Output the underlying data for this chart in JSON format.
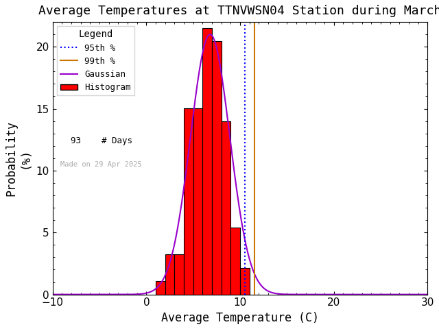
{
  "title": "Average Temperatures at TTNVWSN04 Station during March",
  "xlabel": "Average Temperature (C)",
  "ylabel_top": "Probability",
  "ylabel_bot": "(%)",
  "xlim": [
    -10,
    30
  ],
  "ylim": [
    0,
    22
  ],
  "yticks": [
    0,
    5,
    10,
    15,
    20
  ],
  "xticks": [
    -10,
    0,
    10,
    20,
    30
  ],
  "n_days": 93,
  "made_on": "Made on 29 Apr 2025",
  "bar_edges": [
    1,
    2,
    3,
    4,
    5,
    6,
    7,
    8,
    9,
    10,
    11,
    12
  ],
  "bar_heights": [
    1.08,
    3.23,
    3.23,
    15.05,
    15.05,
    21.51,
    20.43,
    13.98,
    5.38,
    2.15,
    0.0
  ],
  "bar_color": "#ff0000",
  "bar_edgecolor": "#000000",
  "gaussian_color": "#9900cc",
  "gaussian_mean": 6.8,
  "gaussian_std": 2.1,
  "gaussian_amplitude": 21.0,
  "pct95_value": 10.5,
  "pct99_value": 11.5,
  "pct95_color": "#0000ff",
  "pct99_color": "#cc7700",
  "legend_title": "Legend",
  "watermark_color": "#aaaaaa",
  "background_color": "#ffffff",
  "title_color": "#000000",
  "title_fontsize": 13,
  "axis_fontsize": 12,
  "tick_fontsize": 11
}
